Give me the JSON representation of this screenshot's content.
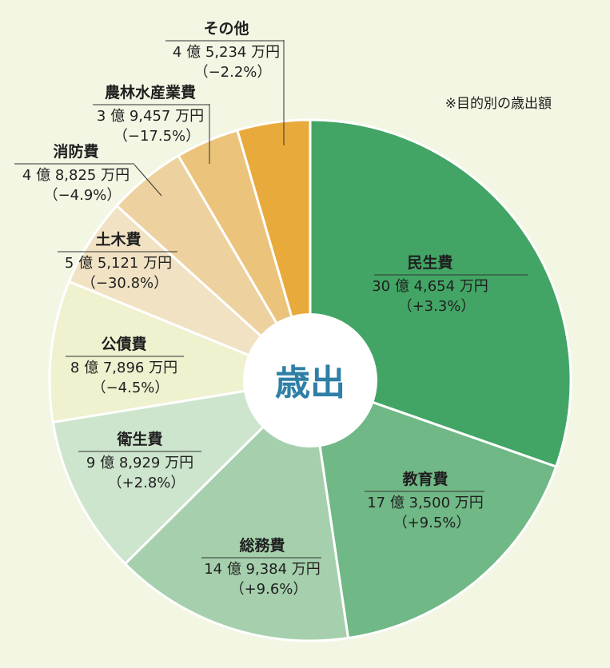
{
  "chart_data": {
    "type": "pie",
    "title": "",
    "center_label": "歳出",
    "note": "※目的別の歳出額",
    "slices": [
      {
        "name": "民生費",
        "amount_label": "30 億 4,654 万円",
        "change": "（+3.3%）",
        "value": 304654,
        "color": "#42a565"
      },
      {
        "name": "教育費",
        "amount_label": "17 億 3,500 万円",
        "change": "（+9.5%）",
        "value": 173500,
        "color": "#70b886"
      },
      {
        "name": "総務費",
        "amount_label": "14 億 9,384 万円",
        "change": "（+9.6%）",
        "value": 149384,
        "color": "#a6d0ad"
      },
      {
        "name": "衛生費",
        "amount_label": "9 億 8,929 万円",
        "change": "（+2.8%）",
        "value": 98929,
        "color": "#cde4cd"
      },
      {
        "name": "公債費",
        "amount_label": "8 億 7,896 万円",
        "change": "（−4.5%）",
        "value": 87896,
        "color": "#eff1cf"
      },
      {
        "name": "土木費",
        "amount_label": "5 億 5,121 万円",
        "change": "（−30.8%）",
        "value": 55121,
        "color": "#f1e2c4"
      },
      {
        "name": "消防費",
        "amount_label": "4 億 8,825 万円",
        "change": "（−4.9%）",
        "value": 48825,
        "color": "#edd2a0"
      },
      {
        "name": "農林水産業費",
        "amount_label": "3 億 9,457 万円",
        "change": "（−17.5%）",
        "value": 39457,
        "color": "#ebc37a"
      },
      {
        "name": "その他",
        "amount_label": "4 億 5,234 万円",
        "change": "（−2.2%）",
        "value": 45234,
        "color": "#e9aa3c"
      }
    ]
  }
}
